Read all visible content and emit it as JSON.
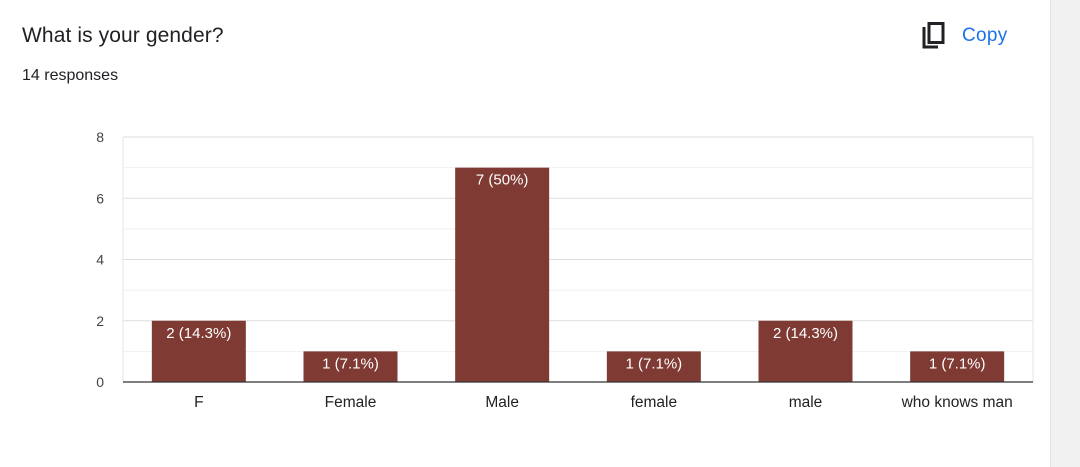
{
  "question": {
    "title": "What is your gender?",
    "responses": "14 responses"
  },
  "toolbar": {
    "copy_label": "Copy",
    "copy_icon": "copy-icon"
  },
  "colors": {
    "bar": "#7f3a34",
    "copy_accent": "#1a73e8"
  },
  "chart_data": {
    "type": "bar",
    "categories": [
      "F",
      "Female",
      "Male",
      "female",
      "male",
      "who knows man"
    ],
    "values": [
      2,
      1,
      7,
      1,
      2,
      1
    ],
    "data_labels": [
      "2 (14.3%)",
      "1 (7.1%)",
      "7 (50%)",
      "1 (7.1%)",
      "2 (14.3%)",
      "1 (7.1%)"
    ],
    "yticks": [
      0,
      2,
      4,
      6,
      8
    ],
    "ylim": [
      0,
      8
    ],
    "grid": true,
    "legend": "none"
  }
}
